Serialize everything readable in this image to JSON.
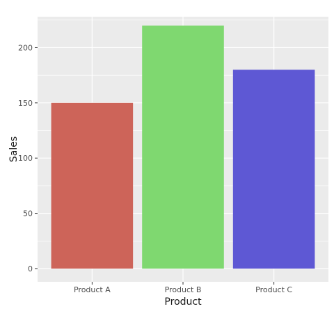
{
  "chart_data": {
    "type": "bar",
    "title": "",
    "xlabel": "Product",
    "ylabel": "Sales",
    "categories": [
      "Product A",
      "Product B",
      "Product C"
    ],
    "values": [
      150,
      220,
      180
    ],
    "colors": [
      "#CD6459",
      "#7FD870",
      "#5E58D4"
    ],
    "ylim": [
      -12,
      228
    ],
    "yticks": [
      0,
      50,
      100,
      150,
      200
    ],
    "ytick_labels": [
      "0",
      "50",
      "100",
      "150",
      "200"
    ],
    "grid": true,
    "legend": "none",
    "panel_background": "#EBEBEB",
    "grid_color": "#FFFFFF"
  }
}
